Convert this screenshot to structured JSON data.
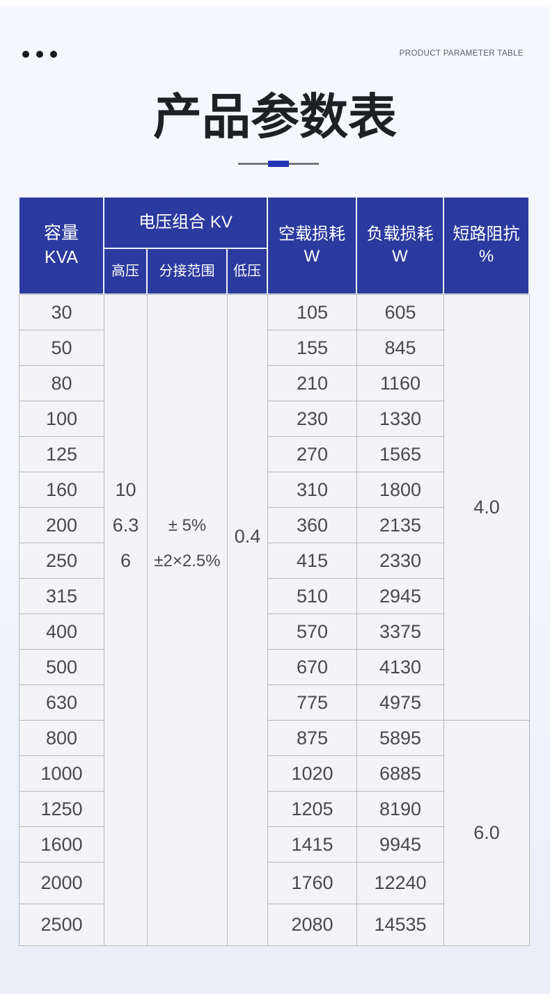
{
  "page": {
    "top_right_label": "PRODUCT PARAMETER TABLE",
    "title": "产品参数表"
  },
  "colors": {
    "header_blue": "#2b3a9e",
    "divider_blue": "#2333b6",
    "cell_bg": "#f4f4f6",
    "grid_line": "#b5b8be",
    "page_bg_top": "#f5f7fc",
    "page_bg_bottom": "#e9eef9"
  },
  "table": {
    "header": {
      "capacity_line1": "容量",
      "capacity_line2": "KVA",
      "voltage_group": "电压组合 KV",
      "hv": "高压",
      "tap_range": "分接范围",
      "lv": "低压",
      "no_load_line1": "空载损耗",
      "no_load_line2": "W",
      "load_line1": "负载损耗",
      "load_line2": "W",
      "impedance_line1": "短路阻抗",
      "impedance_line2": "%"
    },
    "merged": {
      "hv_values": [
        "10",
        "6.3",
        "6"
      ],
      "tap_values": [
        "± 5%",
        "±2×2.5%"
      ],
      "lv_value": "0.4",
      "impedance_values": [
        "4.0",
        "6.0"
      ],
      "impedance_span_rows": [
        12,
        6
      ]
    },
    "rows": [
      {
        "capacity": "30",
        "no_load": "105",
        "load": "605"
      },
      {
        "capacity": "50",
        "no_load": "155",
        "load": "845"
      },
      {
        "capacity": "80",
        "no_load": "210",
        "load": "1160"
      },
      {
        "capacity": "100",
        "no_load": "230",
        "load": "1330"
      },
      {
        "capacity": "125",
        "no_load": "270",
        "load": "1565"
      },
      {
        "capacity": "160",
        "no_load": "310",
        "load": "1800"
      },
      {
        "capacity": "200",
        "no_load": "360",
        "load": "2135"
      },
      {
        "capacity": "250",
        "no_load": "415",
        "load": "2330"
      },
      {
        "capacity": "315",
        "no_load": "510",
        "load": "2945"
      },
      {
        "capacity": "400",
        "no_load": "570",
        "load": "3375"
      },
      {
        "capacity": "500",
        "no_load": "670",
        "load": "4130"
      },
      {
        "capacity": "630",
        "no_load": "775",
        "load": "4975"
      },
      {
        "capacity": "800",
        "no_load": "875",
        "load": "5895"
      },
      {
        "capacity": "1000",
        "no_load": "1020",
        "load": "6885"
      },
      {
        "capacity": "1250",
        "no_load": "1205",
        "load": "8190"
      },
      {
        "capacity": "1600",
        "no_load": "1415",
        "load": "9945"
      },
      {
        "capacity": "2000",
        "no_load": "1760",
        "load": "12240"
      },
      {
        "capacity": "2500",
        "no_load": "2080",
        "load": "14535"
      }
    ]
  }
}
